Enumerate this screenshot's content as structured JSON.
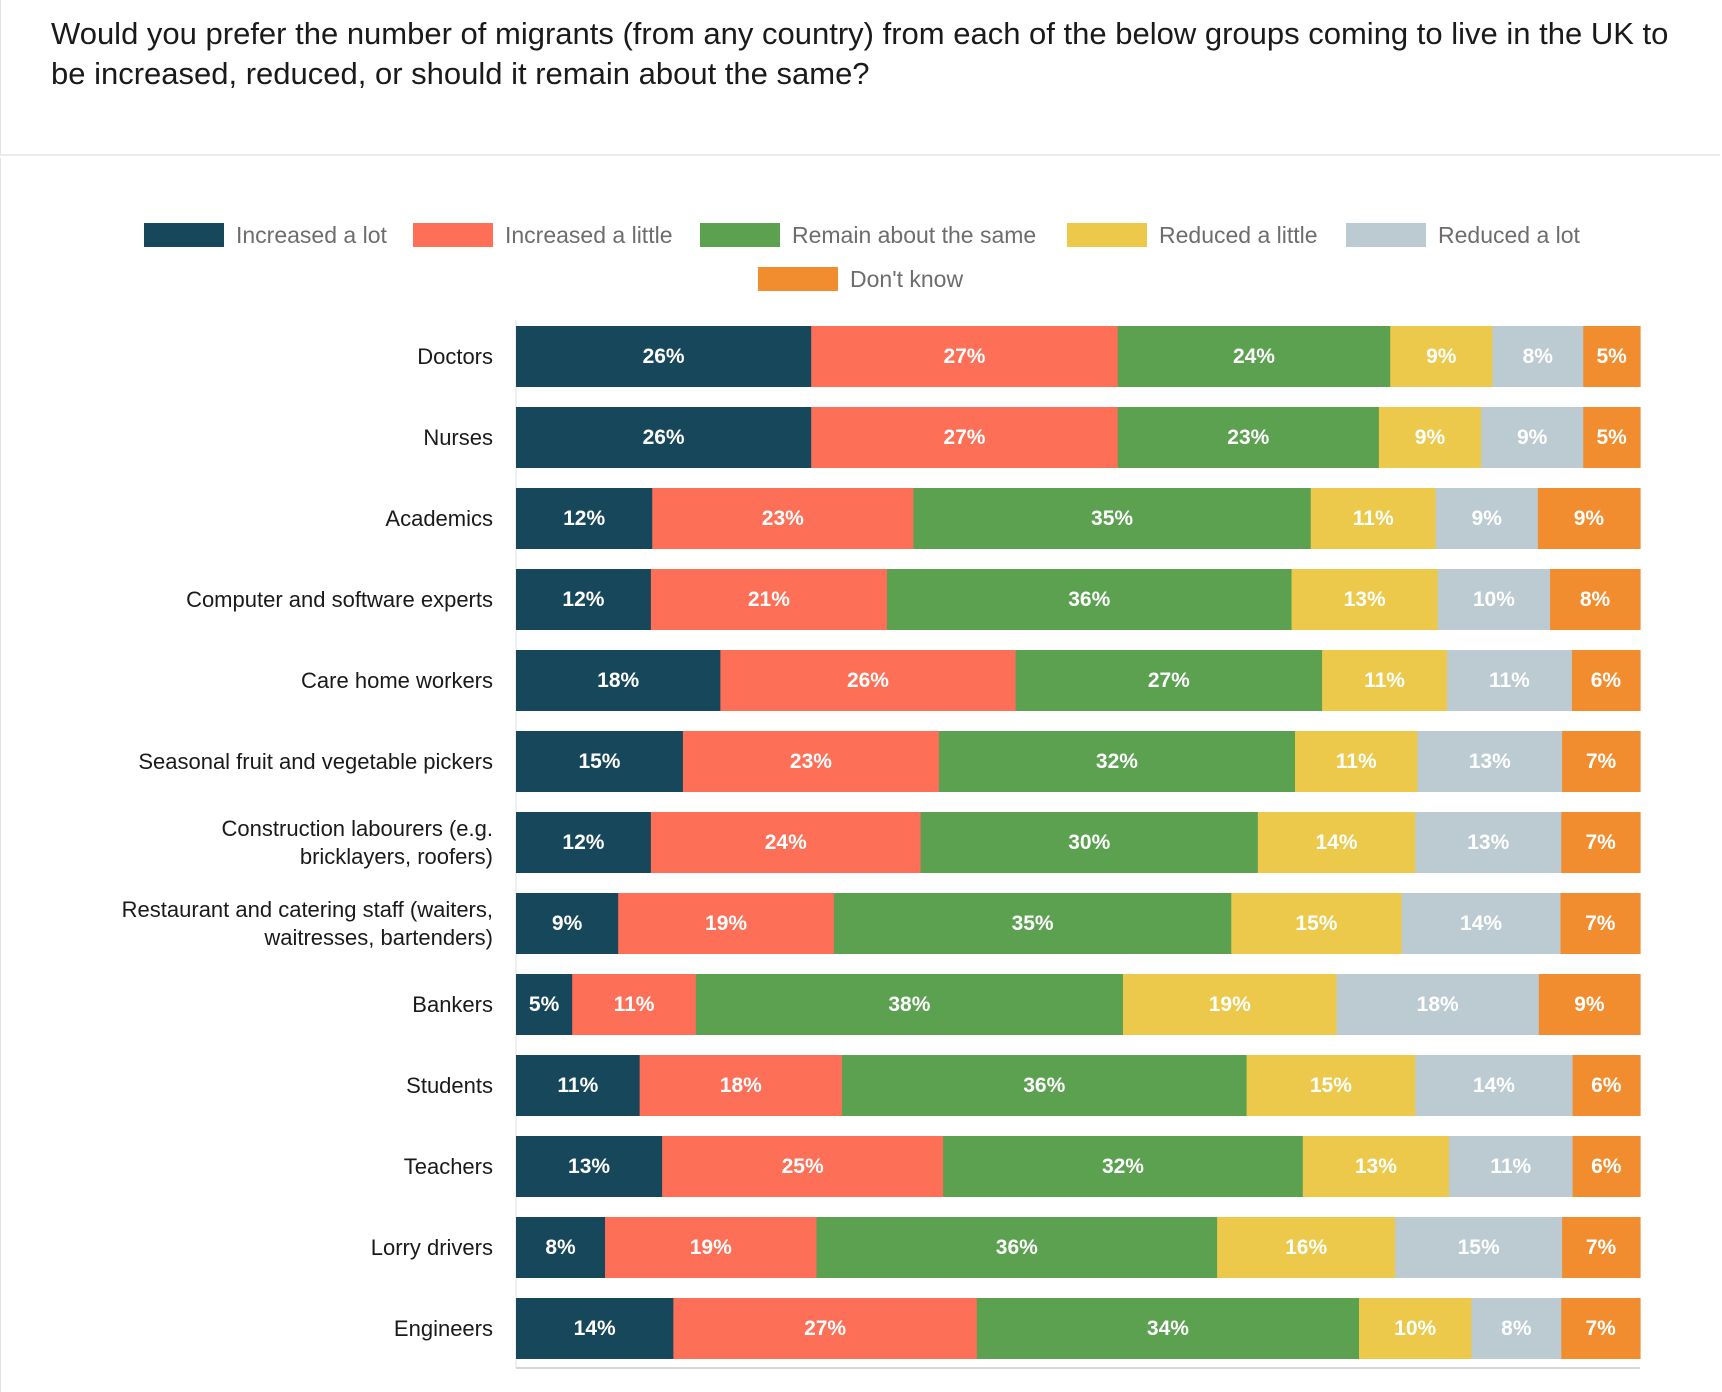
{
  "question": "Would you prefer the number of migrants (from any country) from each of the below groups coming to live in the UK to be increased, reduced, or should it remain about the same?",
  "colors": {
    "increased_a_lot": "#17475a",
    "increased_a_little": "#fd6f57",
    "remain_about_the_same": "#5ba150",
    "reduced_a_little": "#ecc94b",
    "reduced_a_lot": "#bccbd2",
    "dont_know": "#f18d2e"
  },
  "chart_data": {
    "type": "bar",
    "orientation": "horizontal",
    "stacked": true,
    "legend_position": "top",
    "xlim": [
      0,
      100
    ],
    "categories": [
      "Doctors",
      "Nurses",
      "Academics",
      "Computer and software experts",
      "Care home workers",
      "Seasonal fruit and vegetable pickers",
      "Construction labourers (e.g. bricklayers, roofers)",
      "Restaurant and catering staff (waiters, waitresses, bartenders)",
      "Bankers",
      "Students",
      "Teachers",
      "Lorry drivers",
      "Engineers"
    ],
    "category_lines": [
      [
        "Doctors"
      ],
      [
        "Nurses"
      ],
      [
        "Academics"
      ],
      [
        "Computer and software experts"
      ],
      [
        "Care home workers"
      ],
      [
        "Seasonal fruit and vegetable pickers"
      ],
      [
        "Construction labourers (e.g.",
        "bricklayers, roofers)"
      ],
      [
        "Restaurant and catering staff (waiters,",
        "waitresses, bartenders)"
      ],
      [
        "Bankers"
      ],
      [
        "Students"
      ],
      [
        "Teachers"
      ],
      [
        "Lorry drivers"
      ],
      [
        "Engineers"
      ]
    ],
    "series": [
      {
        "name": "Increased a lot",
        "color": "#17475a",
        "values": [
          26,
          26,
          12,
          12,
          18,
          15,
          12,
          9,
          5,
          11,
          13,
          8,
          14
        ]
      },
      {
        "name": "Increased a little",
        "color": "#fd6f57",
        "values": [
          27,
          27,
          23,
          21,
          26,
          23,
          24,
          19,
          11,
          18,
          25,
          19,
          27
        ]
      },
      {
        "name": "Remain about the same",
        "color": "#5ba150",
        "values": [
          24,
          23,
          35,
          36,
          27,
          32,
          30,
          35,
          38,
          36,
          32,
          36,
          34
        ]
      },
      {
        "name": "Reduced a little",
        "color": "#ecc94b",
        "values": [
          9,
          9,
          11,
          13,
          11,
          11,
          14,
          15,
          19,
          15,
          13,
          16,
          10
        ]
      },
      {
        "name": "Reduced a lot",
        "color": "#bccbd2",
        "values": [
          8,
          9,
          9,
          10,
          11,
          13,
          13,
          14,
          18,
          14,
          11,
          15,
          8
        ]
      },
      {
        "name": "Don't know",
        "color": "#f18d2e",
        "values": [
          5,
          5,
          9,
          8,
          6,
          7,
          7,
          7,
          9,
          6,
          6,
          7,
          7
        ]
      }
    ]
  }
}
